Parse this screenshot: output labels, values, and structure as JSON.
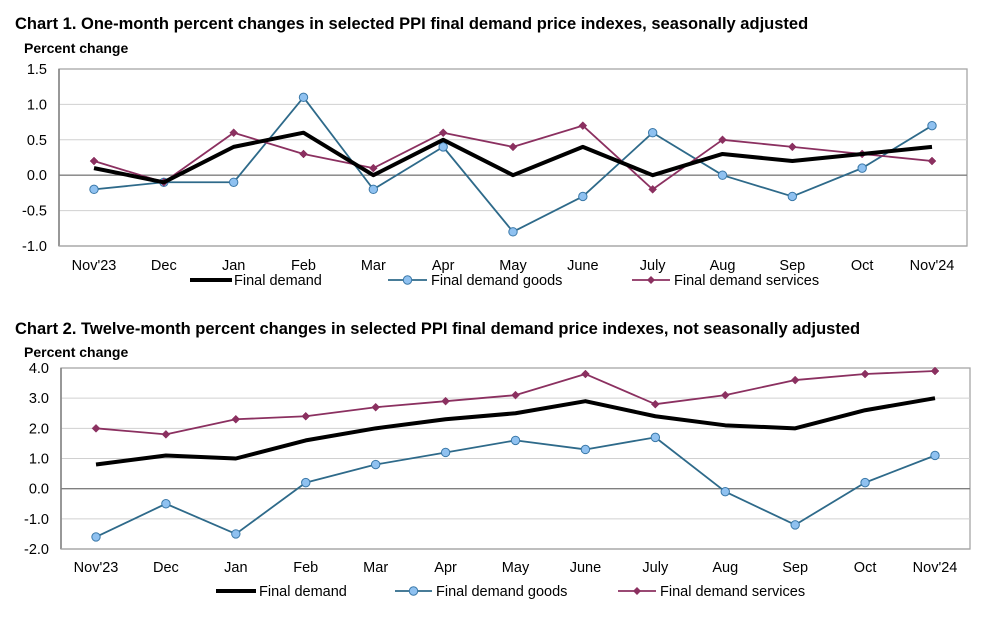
{
  "chart_data": [
    {
      "type": "line",
      "title": "Chart 1. One-month percent changes in selected PPI final demand price indexes, seasonally adjusted",
      "ylabel": "Percent change",
      "xlabel": "",
      "categories": [
        "Nov'23",
        "Dec",
        "Jan",
        "Feb",
        "Mar",
        "Apr",
        "May",
        "June",
        "July",
        "Aug",
        "Sep",
        "Oct",
        "Nov'24"
      ],
      "ylim": [
        -1.0,
        1.5
      ],
      "yticks": [
        "1.5",
        "1.0",
        "0.5",
        "0.0",
        "-0.5",
        "-1.0"
      ],
      "ytick_values": [
        1.5,
        1.0,
        0.5,
        0.0,
        -0.5,
        -1.0
      ],
      "grid": true,
      "legend_position": "bottom",
      "series": [
        {
          "name": "Final demand",
          "color": "#000000",
          "marker": "none",
          "values": [
            0.1,
            -0.1,
            0.4,
            0.6,
            0.0,
            0.5,
            0.0,
            0.4,
            0.0,
            0.3,
            0.2,
            0.3,
            0.4
          ]
        },
        {
          "name": "Final demand goods",
          "color": "#2e6a8a",
          "marker": "circle",
          "marker_fill": "#8fc1f0",
          "values": [
            -0.2,
            -0.1,
            -0.1,
            1.1,
            -0.2,
            0.4,
            -0.8,
            -0.3,
            0.6,
            0.0,
            -0.3,
            0.1,
            0.7
          ]
        },
        {
          "name": "Final demand services",
          "color": "#8b3060",
          "marker": "diamond",
          "values": [
            0.2,
            -0.1,
            0.6,
            0.3,
            0.1,
            0.6,
            0.4,
            0.7,
            -0.2,
            0.5,
            0.4,
            0.3,
            0.2
          ]
        }
      ]
    },
    {
      "type": "line",
      "title": "Chart 2. Twelve-month percent changes in selected PPI final demand price indexes, not seasonally adjusted",
      "ylabel": "Percent change",
      "xlabel": "",
      "categories": [
        "Nov'23",
        "Dec",
        "Jan",
        "Feb",
        "Mar",
        "Apr",
        "May",
        "June",
        "July",
        "Aug",
        "Sep",
        "Oct",
        "Nov'24"
      ],
      "ylim": [
        -2.0,
        4.0
      ],
      "yticks": [
        "4.0",
        "3.0",
        "2.0",
        "1.0",
        "0.0",
        "-1.0",
        "-2.0"
      ],
      "ytick_values": [
        4.0,
        3.0,
        2.0,
        1.0,
        0.0,
        -1.0,
        -2.0
      ],
      "grid": true,
      "legend_position": "bottom",
      "series": [
        {
          "name": "Final demand",
          "color": "#000000",
          "marker": "none",
          "values": [
            0.8,
            1.1,
            1.0,
            1.6,
            2.0,
            2.3,
            2.5,
            2.9,
            2.4,
            2.1,
            2.0,
            2.6,
            3.0
          ]
        },
        {
          "name": "Final demand goods",
          "color": "#2e6a8a",
          "marker": "circle",
          "marker_fill": "#8fc1f0",
          "values": [
            -1.6,
            -0.5,
            -1.5,
            0.2,
            0.8,
            1.2,
            1.6,
            1.3,
            1.7,
            -0.1,
            -1.2,
            0.2,
            1.1
          ]
        },
        {
          "name": "Final demand services",
          "color": "#8b3060",
          "marker": "diamond",
          "values": [
            2.0,
            1.8,
            2.3,
            2.4,
            2.7,
            2.9,
            3.1,
            3.8,
            2.8,
            3.1,
            3.6,
            3.8,
            3.9
          ]
        }
      ]
    }
  ]
}
